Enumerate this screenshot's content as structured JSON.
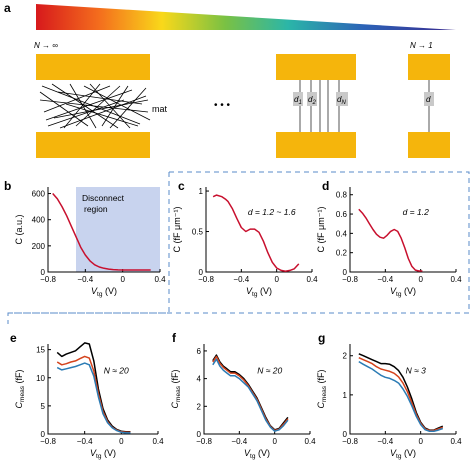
{
  "panel_labels": {
    "a": "a",
    "b": "b",
    "c": "c",
    "d": "d",
    "e": "e",
    "f": "f",
    "g": "g"
  },
  "panel_a": {
    "left_label": "N → ∞",
    "right_label": "N → 1",
    "mat_label": "mat",
    "ellipsis": "• • •",
    "d_labels": [
      "d",
      "1",
      "d",
      "2",
      "d",
      "N"
    ],
    "single_d": "d",
    "colors": {
      "electrode": "#f5b50c",
      "channel": "#c9c9c9"
    }
  },
  "chart_data": [
    {
      "id": "b",
      "type": "line",
      "xlabel": "V",
      "xlabel_sub": "tg",
      "xlabel_unit": " (V)",
      "ylabel": "C (a.u.)",
      "xlim": [
        -0.8,
        0.4
      ],
      "ylim": [
        0,
        650
      ],
      "xticks": [
        "-0.8",
        "-0.4",
        "0",
        "0.4"
      ],
      "yticks": [
        "0",
        "200",
        "400",
        "600"
      ],
      "shaded_region": {
        "x": [
          -0.5,
          0.4
        ],
        "label": "Disconnect region",
        "color": "#c8d3ee"
      },
      "series": [
        {
          "color": "#c8102e",
          "x": [
            -0.75,
            -0.7,
            -0.65,
            -0.6,
            -0.55,
            -0.5,
            -0.45,
            -0.4,
            -0.35,
            -0.3,
            -0.25,
            -0.2,
            -0.15,
            -0.1,
            -0.05,
            0,
            0.05,
            0.1,
            0.2,
            0.3
          ],
          "y": [
            600,
            560,
            500,
            430,
            350,
            270,
            190,
            130,
            85,
            55,
            38,
            28,
            22,
            18,
            16,
            15,
            15,
            15,
            15,
            15
          ]
        }
      ]
    },
    {
      "id": "c",
      "type": "line",
      "xlabel": "V",
      "xlabel_sub": "tg",
      "xlabel_unit": " (V)",
      "ylabel": "C (fF μm⁻¹)",
      "xlim": [
        -0.8,
        0.4
      ],
      "ylim": [
        0,
        1.05
      ],
      "xticks": [
        "-0.8",
        "-0.4",
        "0",
        "0.4"
      ],
      "yticks": [
        "0",
        "0.5",
        "1"
      ],
      "annotation": "d = 1.2 ~ 1.6",
      "series": [
        {
          "color": "#c8102e",
          "x": [
            -0.72,
            -0.68,
            -0.62,
            -0.58,
            -0.55,
            -0.5,
            -0.45,
            -0.4,
            -0.35,
            -0.3,
            -0.25,
            -0.2,
            -0.15,
            -0.1,
            -0.05,
            0,
            0.05,
            0.1,
            0.15,
            0.2,
            0.25
          ],
          "y": [
            0.93,
            0.95,
            0.93,
            0.9,
            0.87,
            0.78,
            0.66,
            0.55,
            0.5,
            0.53,
            0.53,
            0.49,
            0.38,
            0.24,
            0.12,
            0.05,
            0.02,
            0.01,
            0.02,
            0.04,
            0.1
          ]
        }
      ]
    },
    {
      "id": "d",
      "type": "line",
      "xlabel": "V",
      "xlabel_sub": "tg",
      "xlabel_unit": " (V)",
      "ylabel": "C (fF μm⁻¹)",
      "xlim": [
        -0.8,
        0.4
      ],
      "ylim": [
        0,
        0.88
      ],
      "xticks": [
        "-0.8",
        "-0.4",
        "0",
        "0.4"
      ],
      "yticks": [
        "0",
        "0.2",
        "0.4",
        "0.6",
        "0.8"
      ],
      "annotation": "d = 1.2",
      "series": [
        {
          "color": "#c8102e",
          "x": [
            -0.7,
            -0.66,
            -0.62,
            -0.58,
            -0.54,
            -0.5,
            -0.46,
            -0.42,
            -0.38,
            -0.34,
            -0.3,
            -0.26,
            -0.22,
            -0.18,
            -0.14,
            -0.1,
            -0.06,
            -0.02,
            0.02
          ],
          "y": [
            0.65,
            0.61,
            0.56,
            0.5,
            0.44,
            0.39,
            0.36,
            0.35,
            0.38,
            0.42,
            0.44,
            0.42,
            0.35,
            0.25,
            0.14,
            0.06,
            0.02,
            0.01,
            0.01
          ]
        }
      ]
    },
    {
      "id": "e",
      "type": "line",
      "xlabel": "V",
      "xlabel_sub": "tg",
      "xlabel_unit": " (V)",
      "ylabel": "C",
      "ylabel_sub": "meas",
      "ylabel_unit": " (fF)",
      "xlim": [
        -0.8,
        0.4
      ],
      "ylim": [
        0,
        16
      ],
      "xticks": [
        "-0.8",
        "-0.4",
        "0",
        "0.4"
      ],
      "yticks": [
        "0",
        "5",
        "10",
        "15"
      ],
      "annotation": "N ≈ 20",
      "series": [
        {
          "color": "#000000",
          "x": [
            -0.7,
            -0.65,
            -0.6,
            -0.55,
            -0.5,
            -0.45,
            -0.4,
            -0.35,
            -0.3,
            -0.25,
            -0.2,
            -0.15,
            -0.1,
            -0.05,
            0,
            0.05,
            0.1
          ],
          "y": [
            14.5,
            13.8,
            14.2,
            14.5,
            14.8,
            15.5,
            16.2,
            16.0,
            13,
            8,
            4.5,
            2.5,
            1.4,
            0.8,
            0.5,
            0.4,
            0.4
          ]
        },
        {
          "color": "#d4431c",
          "x": [
            -0.7,
            -0.65,
            -0.6,
            -0.55,
            -0.5,
            -0.45,
            -0.4,
            -0.35,
            -0.3,
            -0.25,
            -0.2,
            -0.15,
            -0.1,
            -0.05,
            0,
            0.05,
            0.1
          ],
          "y": [
            12.8,
            12.3,
            12.5,
            12.8,
            13.0,
            13.4,
            13.8,
            13.5,
            11.2,
            7.2,
            4.0,
            2.2,
            1.2,
            0.7,
            0.4,
            0.3,
            0.3
          ]
        },
        {
          "color": "#2b7bb4",
          "x": [
            -0.7,
            -0.65,
            -0.6,
            -0.55,
            -0.5,
            -0.45,
            -0.4,
            -0.35,
            -0.3,
            -0.25,
            -0.2,
            -0.15,
            -0.1,
            -0.05,
            0,
            0.05,
            0.1
          ],
          "y": [
            11.8,
            11.4,
            11.6,
            11.8,
            12.0,
            12.3,
            12.6,
            12.3,
            10.3,
            6.6,
            3.6,
            2.0,
            1.1,
            0.6,
            0.3,
            0.2,
            0.2
          ]
        }
      ]
    },
    {
      "id": "f",
      "type": "line",
      "xlabel": "V",
      "xlabel_sub": "tg",
      "xlabel_unit": " (V)",
      "ylabel": "C",
      "ylabel_sub": "meas",
      "ylabel_unit": " (fF)",
      "xlim": [
        -0.8,
        0.4
      ],
      "ylim": [
        0,
        6.5
      ],
      "xticks": [
        "-0.8",
        "-0.4",
        "0",
        "0.4"
      ],
      "yticks": [
        "0",
        "2",
        "4",
        "6"
      ],
      "annotation": "N ≈ 20",
      "series": [
        {
          "color": "#000000",
          "x": [
            -0.7,
            -0.66,
            -0.62,
            -0.58,
            -0.54,
            -0.5,
            -0.45,
            -0.4,
            -0.35,
            -0.3,
            -0.25,
            -0.2,
            -0.15,
            -0.1,
            -0.05,
            0,
            0.05,
            0.1,
            0.15
          ],
          "y": [
            5.3,
            5.7,
            5.2,
            4.9,
            4.7,
            4.5,
            4.5,
            4.3,
            4.0,
            3.6,
            3.1,
            2.6,
            1.9,
            1.2,
            0.6,
            0.3,
            0.4,
            0.8,
            1.2
          ]
        },
        {
          "color": "#d4431c",
          "x": [
            -0.7,
            -0.66,
            -0.62,
            -0.58,
            -0.54,
            -0.5,
            -0.45,
            -0.4,
            -0.35,
            -0.3,
            -0.25,
            -0.2,
            -0.15,
            -0.1,
            -0.05,
            0,
            0.05,
            0.1,
            0.15
          ],
          "y": [
            5.2,
            5.6,
            5.1,
            4.8,
            4.6,
            4.4,
            4.4,
            4.2,
            3.9,
            3.5,
            3.0,
            2.5,
            1.8,
            1.1,
            0.55,
            0.25,
            0.35,
            0.7,
            1.1
          ]
        },
        {
          "color": "#2b7bb4",
          "x": [
            -0.7,
            -0.66,
            -0.62,
            -0.58,
            -0.54,
            -0.5,
            -0.45,
            -0.4,
            -0.35,
            -0.3,
            -0.25,
            -0.2,
            -0.15,
            -0.1,
            -0.05,
            0,
            0.05,
            0.1,
            0.15
          ],
          "y": [
            5.0,
            5.4,
            4.9,
            4.6,
            4.4,
            4.2,
            4.2,
            4.0,
            3.7,
            3.4,
            2.9,
            2.4,
            1.7,
            1.0,
            0.5,
            0.2,
            0.3,
            0.6,
            1.0
          ]
        }
      ]
    },
    {
      "id": "g",
      "type": "line",
      "xlabel": "V",
      "xlabel_sub": "tg",
      "xlabel_unit": " (V)",
      "ylabel": "C",
      "ylabel_sub": "meas",
      "ylabel_unit": " (fF)",
      "xlim": [
        -0.8,
        0.4
      ],
      "ylim": [
        0,
        2.3
      ],
      "xticks": [
        "-0.8",
        "-0.4",
        "0",
        "0.4"
      ],
      "yticks": [
        "0",
        "1",
        "2"
      ],
      "annotation": "N ≈ 3",
      "series": [
        {
          "color": "#000000",
          "x": [
            -0.7,
            -0.65,
            -0.6,
            -0.55,
            -0.5,
            -0.45,
            -0.4,
            -0.35,
            -0.3,
            -0.25,
            -0.2,
            -0.15,
            -0.1,
            -0.05,
            0,
            0.05,
            0.1,
            0.15,
            0.2,
            0.25
          ],
          "y": [
            2.05,
            2.0,
            1.95,
            1.9,
            1.85,
            1.8,
            1.8,
            1.78,
            1.72,
            1.62,
            1.45,
            1.2,
            0.9,
            0.55,
            0.3,
            0.15,
            0.1,
            0.1,
            0.15,
            0.2
          ]
        },
        {
          "color": "#d4431c",
          "x": [
            -0.7,
            -0.65,
            -0.6,
            -0.55,
            -0.5,
            -0.45,
            -0.4,
            -0.35,
            -0.3,
            -0.25,
            -0.2,
            -0.15,
            -0.1,
            -0.05,
            0,
            0.05,
            0.1,
            0.15,
            0.2,
            0.25
          ],
          "y": [
            1.95,
            1.9,
            1.85,
            1.8,
            1.72,
            1.66,
            1.63,
            1.6,
            1.55,
            1.46,
            1.3,
            1.08,
            0.8,
            0.5,
            0.27,
            0.13,
            0.09,
            0.09,
            0.13,
            0.17
          ]
        },
        {
          "color": "#2b7bb4",
          "x": [
            -0.7,
            -0.65,
            -0.6,
            -0.55,
            -0.5,
            -0.45,
            -0.4,
            -0.35,
            -0.3,
            -0.25,
            -0.2,
            -0.15,
            -0.1,
            -0.05,
            0,
            0.05,
            0.1,
            0.15,
            0.2,
            0.25
          ],
          "y": [
            1.85,
            1.78,
            1.72,
            1.66,
            1.58,
            1.5,
            1.45,
            1.42,
            1.37,
            1.3,
            1.15,
            0.96,
            0.72,
            0.45,
            0.24,
            0.11,
            0.07,
            0.07,
            0.1,
            0.14
          ]
        }
      ]
    }
  ]
}
